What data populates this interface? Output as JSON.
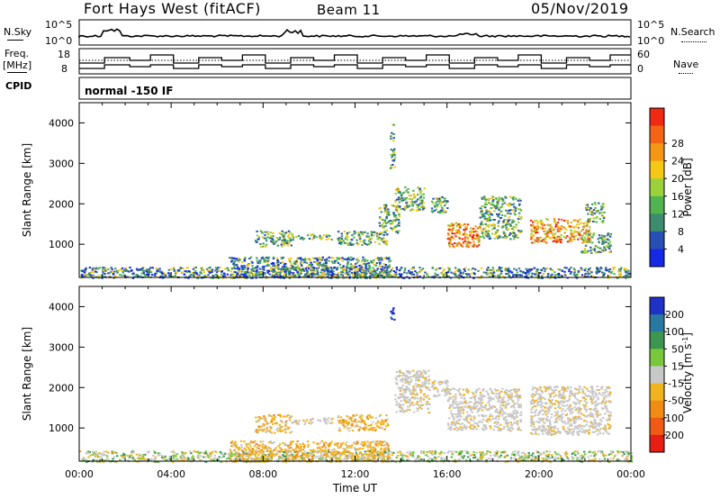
{
  "header": {
    "title": "Fort Hays West (fitACF)",
    "beam": "Beam 11",
    "date": "05/Nov/2019"
  },
  "top_panels": {
    "nsky_label": "N.Sky",
    "nsearch_label": "N.Search",
    "noise_ticks": [
      "10^5",
      "10^0"
    ],
    "freq_label": "Freq.",
    "freq_unit": "[MHz]",
    "freq_ticks": [
      "18",
      "8"
    ],
    "nave_label": "Nave",
    "nave_ticks": [
      "60",
      "0"
    ],
    "cpid_label": "CPID",
    "cpid_value": "normal -150 IF"
  },
  "chart_data": [
    {
      "type": "heatmap",
      "parameter": "Power",
      "ylabel": "Slant Range [km]",
      "xlabel": "",
      "x_range_hours": [
        0,
        24
      ],
      "ylim": [
        180,
        4500
      ],
      "yticks": [
        "1000",
        "2000",
        "3000",
        "4000"
      ],
      "colorbar_label": "Power [dB]",
      "colorbar_ticks": [
        "4",
        "8",
        "12",
        "16",
        "20",
        "24",
        "28"
      ],
      "colorbar_colors": [
        "#1428e6",
        "#2850b4",
        "#3c8c6e",
        "#50b450",
        "#9bd23c",
        "#f5c814",
        "#f59614",
        "#f56414",
        "#f02814"
      ],
      "scatter_blocks": [
        {
          "t0": 7.6,
          "t1": 9.2,
          "r0": 950,
          "r1": 1350,
          "cmap": "mid"
        },
        {
          "t0": 9.2,
          "t1": 11.0,
          "r0": 1120,
          "r1": 1270,
          "cmap": "mid"
        },
        {
          "t0": 11.2,
          "t1": 13.4,
          "r0": 1000,
          "r1": 1350,
          "cmap": "mid"
        },
        {
          "t0": 13.0,
          "t1": 13.9,
          "r0": 1300,
          "r1": 2000,
          "cmap": "mid"
        },
        {
          "t0": 13.7,
          "t1": 15.0,
          "r0": 1850,
          "r1": 2450,
          "cmap": "mid"
        },
        {
          "t0": 15.3,
          "t1": 16.0,
          "r0": 1800,
          "r1": 2200,
          "cmap": "mid"
        },
        {
          "t0": 16.0,
          "t1": 17.4,
          "r0": 950,
          "r1": 1550,
          "cmap": "strong"
        },
        {
          "t0": 17.4,
          "t1": 19.2,
          "r0": 1150,
          "r1": 2200,
          "cmap": "mid"
        },
        {
          "t0": 19.6,
          "t1": 22.2,
          "r0": 1050,
          "r1": 1650,
          "cmap": "strong"
        },
        {
          "t0": 22.0,
          "t1": 22.8,
          "r0": 1550,
          "r1": 2050,
          "cmap": "mid"
        },
        {
          "t0": 21.8,
          "t1": 23.1,
          "r0": 800,
          "r1": 1300,
          "cmap": "mid"
        },
        {
          "t0": 0.0,
          "t1": 24.0,
          "r0": 180,
          "r1": 450,
          "cmap": "weak"
        },
        {
          "t0": 6.5,
          "t1": 13.5,
          "r0": 180,
          "r1": 700,
          "cmap": "weak"
        },
        {
          "t0": 13.5,
          "t1": 13.7,
          "r0": 2900,
          "r1": 4000,
          "cmap": "mid"
        }
      ]
    },
    {
      "type": "heatmap",
      "parameter": "Velocity",
      "ylabel": "Slant Range [km]",
      "xlabel": "Time UT",
      "x_range_hours": [
        0,
        24
      ],
      "xticks": [
        "00:00",
        "04:00",
        "08:00",
        "12:00",
        "16:00",
        "20:00",
        "00:00"
      ],
      "ylim": [
        180,
        4500
      ],
      "yticks": [
        "1000",
        "2000",
        "3000",
        "4000"
      ],
      "colorbar_label_main": "Velocity",
      "colorbar_label_unit": "[m s",
      "colorbar_label_exp": "-1",
      "colorbar_label_close": "]",
      "colorbar_ticks": [
        "200",
        "100",
        "50",
        "15",
        "-15",
        "-50",
        "-100",
        "-200"
      ],
      "colorbar_colors": [
        "#1e32c8",
        "#2878a0",
        "#3c9650",
        "#78c83c",
        "#c8c8c8",
        "#f0b41e",
        "#f08c14",
        "#f05a14",
        "#e61e14"
      ],
      "scatter_blocks": [
        {
          "t0": 7.6,
          "t1": 9.2,
          "r0": 900,
          "r1": 1350,
          "cmap": "neg"
        },
        {
          "t0": 9.2,
          "t1": 11.0,
          "r0": 1120,
          "r1": 1270,
          "cmap": "gray"
        },
        {
          "t0": 11.2,
          "t1": 13.4,
          "r0": 950,
          "r1": 1350,
          "cmap": "neg"
        },
        {
          "t0": 13.7,
          "t1": 15.2,
          "r0": 1400,
          "r1": 2450,
          "cmap": "gray"
        },
        {
          "t0": 15.3,
          "t1": 16.0,
          "r0": 1800,
          "r1": 2200,
          "cmap": "gray"
        },
        {
          "t0": 16.0,
          "t1": 19.2,
          "r0": 950,
          "r1": 2000,
          "cmap": "gray"
        },
        {
          "t0": 19.6,
          "t1": 23.1,
          "r0": 850,
          "r1": 2050,
          "cmap": "gray"
        },
        {
          "t0": 0.0,
          "t1": 24.0,
          "r0": 180,
          "r1": 450,
          "cmap": "low"
        },
        {
          "t0": 6.5,
          "t1": 13.5,
          "r0": 180,
          "r1": 700,
          "cmap": "neg"
        },
        {
          "t0": 13.5,
          "t1": 13.7,
          "r0": 3700,
          "r1": 4000,
          "cmap": "pos"
        }
      ]
    }
  ]
}
